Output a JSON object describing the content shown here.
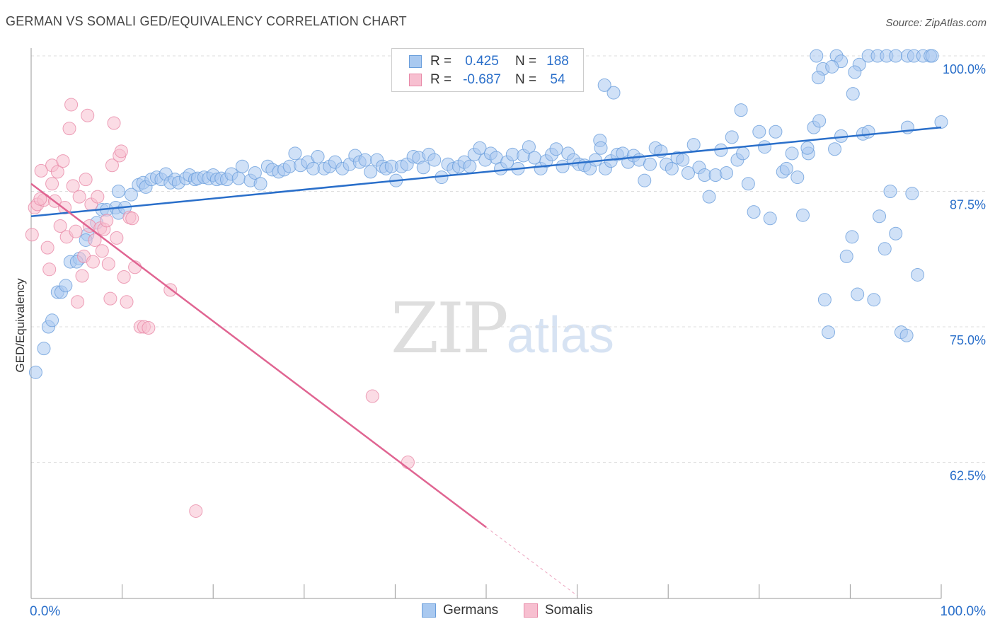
{
  "header": {
    "title": "GERMAN VS SOMALI GED/EQUIVALENCY CORRELATION CHART",
    "source": "Source: ZipAtlas.com"
  },
  "legend": {
    "rows": [
      {
        "r_label": "R =",
        "r_value": "0.425",
        "n_label": "N =",
        "n_value": "188",
        "color": "#a9c9f0",
        "border": "#6b9fdc"
      },
      {
        "r_label": "R =",
        "r_value": "-0.687",
        "n_label": "N =",
        "n_value": "54",
        "color": "#f7bfd0",
        "border": "#e88aa8"
      }
    ]
  },
  "bottom_legend": [
    {
      "label": "Germans",
      "color": "#a9c9f0",
      "border": "#6b9fdc"
    },
    {
      "label": "Somalis",
      "color": "#f7bfd0",
      "border": "#e88aa8"
    }
  ],
  "watermark": {
    "zip": "ZIP",
    "atlas": "atlas"
  },
  "chart_data": {
    "type": "scatter",
    "title": "GERMAN VS SOMALI GED/EQUIVALENCY CORRELATION CHART",
    "xlabel": "",
    "ylabel": "GED/Equivalency",
    "xlim": [
      0,
      100
    ],
    "ylim": [
      50,
      102
    ],
    "x_ticks": [
      {
        "value": 0,
        "label": "0.0%"
      },
      {
        "value": 100,
        "label": "100.0%"
      }
    ],
    "y_ticks": [
      {
        "value": 62.5,
        "label": "62.5%"
      },
      {
        "value": 75.0,
        "label": "75.0%"
      },
      {
        "value": 87.5,
        "label": "87.5%"
      },
      {
        "value": 100.0,
        "label": "100.0%"
      }
    ],
    "colors": {
      "germans": "#6b9fdc",
      "germans_fill": "#a9c9f0",
      "somalis": "#e88aa8",
      "somalis_fill": "#f7bfd0",
      "germans_line": "#2a6fca",
      "somalis_line": "#e06592"
    },
    "series": [
      {
        "name": "Germans",
        "trend": {
          "x0": 0,
          "y0": 85.2,
          "x1": 100,
          "y1": 93.4
        },
        "points": [
          [
            0.5,
            70.8
          ],
          [
            1.4,
            73.0
          ],
          [
            1.9,
            75.0
          ],
          [
            2.3,
            75.6
          ],
          [
            2.9,
            78.2
          ],
          [
            3.3,
            78.2
          ],
          [
            3.8,
            78.8
          ],
          [
            4.3,
            81.0
          ],
          [
            5.3,
            81.3
          ],
          [
            5.0,
            81.0
          ],
          [
            6.2,
            83.5
          ],
          [
            6.0,
            83.0
          ],
          [
            7.2,
            84.6
          ],
          [
            7.8,
            85.8
          ],
          [
            8.3,
            85.8
          ],
          [
            9.3,
            86.0
          ],
          [
            9.6,
            85.5
          ],
          [
            10.3,
            86.0
          ],
          [
            9.6,
            87.5
          ],
          [
            11.0,
            87.2
          ],
          [
            11.8,
            88.1
          ],
          [
            12.3,
            88.3
          ],
          [
            12.6,
            87.9
          ],
          [
            13.2,
            88.6
          ],
          [
            13.8,
            88.8
          ],
          [
            14.3,
            88.6
          ],
          [
            14.8,
            89.1
          ],
          [
            15.3,
            88.3
          ],
          [
            15.8,
            88.6
          ],
          [
            16.2,
            88.3
          ],
          [
            17.0,
            88.7
          ],
          [
            17.4,
            89.0
          ],
          [
            18.0,
            88.6
          ],
          [
            18.3,
            88.7
          ],
          [
            19.0,
            88.8
          ],
          [
            19.5,
            88.7
          ],
          [
            20.0,
            89.0
          ],
          [
            20.4,
            88.6
          ],
          [
            20.9,
            88.7
          ],
          [
            21.5,
            88.6
          ],
          [
            22.0,
            89.1
          ],
          [
            22.8,
            88.7
          ],
          [
            23.2,
            89.8
          ],
          [
            24.1,
            88.5
          ],
          [
            24.6,
            89.2
          ],
          [
            25.2,
            88.2
          ],
          [
            26.0,
            89.8
          ],
          [
            26.5,
            89.5
          ],
          [
            27.2,
            89.3
          ],
          [
            27.8,
            89.5
          ],
          [
            28.4,
            89.8
          ],
          [
            29.0,
            91.0
          ],
          [
            29.6,
            89.9
          ],
          [
            30.4,
            90.2
          ],
          [
            31.0,
            89.6
          ],
          [
            31.5,
            90.7
          ],
          [
            32.2,
            89.6
          ],
          [
            32.8,
            89.8
          ],
          [
            33.4,
            90.2
          ],
          [
            34.2,
            89.6
          ],
          [
            35.0,
            90.0
          ],
          [
            35.6,
            90.8
          ],
          [
            36.1,
            90.2
          ],
          [
            36.7,
            90.4
          ],
          [
            37.3,
            89.3
          ],
          [
            38.0,
            90.4
          ],
          [
            38.6,
            89.8
          ],
          [
            39.0,
            89.6
          ],
          [
            39.6,
            89.8
          ],
          [
            40.1,
            88.5
          ],
          [
            40.7,
            89.8
          ],
          [
            41.3,
            90.0
          ],
          [
            42.0,
            90.7
          ],
          [
            42.6,
            90.6
          ],
          [
            43.1,
            89.7
          ],
          [
            43.7,
            90.9
          ],
          [
            44.3,
            90.4
          ],
          [
            45.1,
            88.8
          ],
          [
            45.8,
            90.0
          ],
          [
            46.4,
            89.6
          ],
          [
            47.0,
            89.8
          ],
          [
            47.6,
            90.2
          ],
          [
            48.2,
            89.8
          ],
          [
            48.7,
            90.9
          ],
          [
            49.3,
            91.5
          ],
          [
            49.9,
            90.4
          ],
          [
            50.5,
            91.0
          ],
          [
            51.1,
            90.6
          ],
          [
            51.6,
            89.6
          ],
          [
            52.3,
            90.2
          ],
          [
            52.9,
            90.9
          ],
          [
            53.5,
            89.6
          ],
          [
            54.1,
            90.8
          ],
          [
            54.7,
            91.6
          ],
          [
            55.3,
            90.6
          ],
          [
            56.0,
            89.6
          ],
          [
            56.6,
            90.3
          ],
          [
            57.2,
            90.9
          ],
          [
            57.7,
            91.4
          ],
          [
            58.4,
            89.8
          ],
          [
            59.0,
            91.0
          ],
          [
            59.6,
            90.4
          ],
          [
            60.2,
            90.0
          ],
          [
            60.8,
            89.9
          ],
          [
            61.4,
            89.6
          ],
          [
            62.0,
            90.4
          ],
          [
            62.5,
            92.2
          ],
          [
            63.1,
            89.6
          ],
          [
            63.7,
            90.3
          ],
          [
            64.4,
            90.9
          ],
          [
            65.0,
            91.0
          ],
          [
            65.6,
            90.2
          ],
          [
            66.2,
            90.8
          ],
          [
            66.8,
            90.4
          ],
          [
            67.4,
            88.5
          ],
          [
            68.0,
            90.0
          ],
          [
            68.6,
            91.5
          ],
          [
            69.2,
            91.2
          ],
          [
            69.8,
            90.0
          ],
          [
            70.4,
            89.6
          ],
          [
            71.0,
            90.6
          ],
          [
            71.6,
            90.4
          ],
          [
            72.2,
            89.2
          ],
          [
            72.8,
            91.8
          ],
          [
            73.4,
            89.7
          ],
          [
            74.0,
            89.0
          ],
          [
            74.5,
            87.0
          ],
          [
            75.2,
            89.0
          ],
          [
            75.8,
            91.3
          ],
          [
            76.4,
            89.2
          ],
          [
            77.0,
            92.5
          ],
          [
            77.6,
            90.4
          ],
          [
            78.2,
            91.0
          ],
          [
            78.8,
            88.2
          ],
          [
            79.4,
            85.6
          ],
          [
            80.0,
            93.0
          ],
          [
            80.6,
            91.6
          ],
          [
            81.2,
            85.0
          ],
          [
            81.8,
            93.0
          ],
          [
            82.6,
            89.3
          ],
          [
            83.0,
            89.6
          ],
          [
            83.6,
            91.0
          ],
          [
            84.2,
            88.8
          ],
          [
            84.8,
            85.3
          ],
          [
            85.4,
            91.0
          ],
          [
            86.0,
            93.4
          ],
          [
            86.6,
            94.0
          ],
          [
            87.2,
            77.5
          ],
          [
            87.6,
            74.5
          ],
          [
            88.3,
            91.4
          ],
          [
            89.0,
            92.6
          ],
          [
            89.6,
            81.5
          ],
          [
            90.2,
            83.3
          ],
          [
            90.8,
            78.0
          ],
          [
            91.4,
            92.8
          ],
          [
            92.0,
            93.0
          ],
          [
            92.6,
            77.5
          ],
          [
            93.2,
            85.2
          ],
          [
            93.8,
            82.2
          ],
          [
            94.4,
            87.5
          ],
          [
            95.0,
            83.6
          ],
          [
            95.6,
            74.5
          ],
          [
            96.2,
            74.2
          ],
          [
            96.8,
            87.3
          ],
          [
            97.4,
            79.8
          ],
          [
            85.3,
            91.5
          ],
          [
            78.0,
            95.0
          ],
          [
            64.0,
            96.6
          ],
          [
            63.0,
            97.3
          ],
          [
            62.6,
            91.5
          ],
          [
            86.3,
            100.0
          ],
          [
            87.0,
            98.8
          ],
          [
            88.5,
            100.0
          ],
          [
            89.0,
            99.5
          ],
          [
            90.3,
            96.5
          ],
          [
            91.0,
            99.2
          ],
          [
            92.0,
            100.0
          ],
          [
            93.0,
            100.0
          ],
          [
            94.0,
            100.0
          ],
          [
            95.0,
            100.0
          ],
          [
            96.3,
            100.0
          ],
          [
            97.0,
            100.0
          ],
          [
            98.0,
            100.0
          ],
          [
            98.8,
            100.0
          ],
          [
            100.0,
            93.9
          ],
          [
            96.3,
            93.4
          ],
          [
            88.0,
            99.0
          ],
          [
            86.5,
            98.0
          ],
          [
            90.5,
            98.5
          ],
          [
            99.0,
            100.0
          ]
        ]
      },
      {
        "name": "Somalis",
        "trend": {
          "x0": 0,
          "y0": 88.2,
          "x1": 50,
          "y1": 56.5,
          "dashed_to": {
            "x": 60,
            "y": 50.2
          }
        },
        "points": [
          [
            0.1,
            83.5
          ],
          [
            0.4,
            86.0
          ],
          [
            0.7,
            86.3
          ],
          [
            1.1,
            89.4
          ],
          [
            1.4,
            86.7
          ],
          [
            1.8,
            82.3
          ],
          [
            2.0,
            80.3
          ],
          [
            2.3,
            88.2
          ],
          [
            2.3,
            89.9
          ],
          [
            2.6,
            86.6
          ],
          [
            2.9,
            89.3
          ],
          [
            3.2,
            84.3
          ],
          [
            3.5,
            90.3
          ],
          [
            3.7,
            86.0
          ],
          [
            3.9,
            83.3
          ],
          [
            4.2,
            93.3
          ],
          [
            4.4,
            95.5
          ],
          [
            4.6,
            88.0
          ],
          [
            4.9,
            83.8
          ],
          [
            5.1,
            77.3
          ],
          [
            5.3,
            87.0
          ],
          [
            5.6,
            79.7
          ],
          [
            5.8,
            81.5
          ],
          [
            6.0,
            88.6
          ],
          [
            6.2,
            94.5
          ],
          [
            6.4,
            84.3
          ],
          [
            6.6,
            86.3
          ],
          [
            6.8,
            81.0
          ],
          [
            7.0,
            83.0
          ],
          [
            7.3,
            87.0
          ],
          [
            7.6,
            84.1
          ],
          [
            7.8,
            82.0
          ],
          [
            8.0,
            84.0
          ],
          [
            8.3,
            84.8
          ],
          [
            8.5,
            80.8
          ],
          [
            8.7,
            77.6
          ],
          [
            8.9,
            89.9
          ],
          [
            9.1,
            93.8
          ],
          [
            9.4,
            83.2
          ],
          [
            9.7,
            90.8
          ],
          [
            9.9,
            91.2
          ],
          [
            10.2,
            79.6
          ],
          [
            10.5,
            77.3
          ],
          [
            10.8,
            85.1
          ],
          [
            11.1,
            85.0
          ],
          [
            11.4,
            80.5
          ],
          [
            12.0,
            75.0
          ],
          [
            12.4,
            75.0
          ],
          [
            12.9,
            74.9
          ],
          [
            15.3,
            78.4
          ],
          [
            18.1,
            58.0
          ],
          [
            37.5,
            68.6
          ],
          [
            41.4,
            62.5
          ],
          [
            1.0,
            86.8
          ]
        ]
      }
    ]
  }
}
